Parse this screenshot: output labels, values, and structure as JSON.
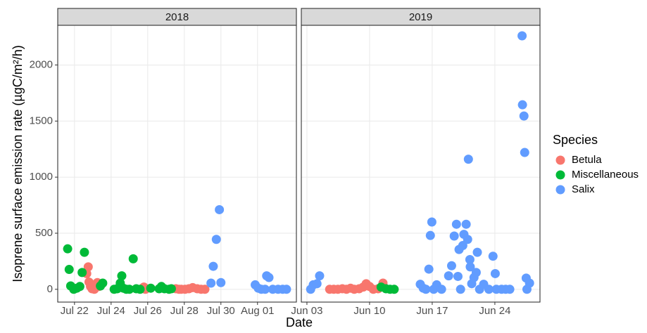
{
  "chart_data": {
    "type": "scatter",
    "ylabel": "Isoprene surface emission rate (µgC/m²/h)",
    "xlabel": "Date",
    "legend_title": "Species",
    "ylim": [
      -114,
      2354
    ],
    "yticks": [
      0,
      500,
      1000,
      1500,
      2000
    ],
    "grid": true,
    "panels": [
      {
        "title": "2018",
        "xlim": [
          "2018-07-21T02:00",
          "2018-08-03T03:00"
        ],
        "xticks": [
          {
            "value": "2018-07-22T00:00",
            "label": "Jul 22"
          },
          {
            "value": "2018-07-24T00:00",
            "label": "Jul 24"
          },
          {
            "value": "2018-07-26T00:00",
            "label": "Jul 26"
          },
          {
            "value": "2018-07-28T00:00",
            "label": "Jul 28"
          },
          {
            "value": "2018-07-30T00:00",
            "label": "Jul 30"
          },
          {
            "value": "2018-08-01T00:00",
            "label": "Aug 01"
          }
        ],
        "series": [
          {
            "name": "Betula",
            "color": "#F8766D",
            "x": [
              "2018-07-22T16:00",
              "2018-07-22T18:00",
              "2018-07-22T19:00",
              "2018-07-22T21:00",
              "2018-07-22T23:00",
              "2018-07-23T02:00",
              "2018-07-23T06:00",
              "2018-07-23T08:00",
              "2018-07-25T19:00",
              "2018-07-25T21:00",
              "2018-07-27T13:00",
              "2018-07-27T17:00",
              "2018-07-27T20:00",
              "2018-07-28T01:00",
              "2018-07-28T06:00",
              "2018-07-28T11:00",
              "2018-07-28T17:00",
              "2018-07-28T22:00",
              "2018-07-29T03:00"
            ],
            "values": [
              140,
              200,
              65,
              25,
              5,
              0,
              60,
              25,
              20,
              0,
              5,
              0,
              0,
              0,
              5,
              15,
              5,
              0,
              0
            ]
          },
          {
            "name": "Miscellaneous",
            "color": "#00BA38",
            "x": [
              "2018-07-21T15:00",
              "2018-07-21T17:00",
              "2018-07-21T19:00",
              "2018-07-21T23:00",
              "2018-07-22T03:00",
              "2018-07-22T07:00",
              "2018-07-22T10:00",
              "2018-07-22T13:00",
              "2018-07-23T10:00",
              "2018-07-23T13:00",
              "2018-07-24T04:00",
              "2018-07-24T08:00",
              "2018-07-24T12:00",
              "2018-07-24T14:00",
              "2018-07-24T16:00",
              "2018-07-24T20:00",
              "2018-07-25T00:00",
              "2018-07-25T05:00",
              "2018-07-25T09:00",
              "2018-07-25T14:00",
              "2018-07-26T04:00",
              "2018-07-26T15:00",
              "2018-07-26T18:00",
              "2018-07-26T22:00",
              "2018-07-27T04:00",
              "2018-07-27T07:00"
            ],
            "values": [
              361,
              177,
              30,
              0,
              10,
              25,
              150,
              330,
              30,
              55,
              0,
              5,
              55,
              120,
              10,
              0,
              0,
              272,
              5,
              0,
              10,
              5,
              25,
              5,
              0,
              5
            ]
          },
          {
            "name": "Salix",
            "color": "#619CFF",
            "x": [
              "2018-07-29T11:00",
              "2018-07-29T14:00",
              "2018-07-29T18:00",
              "2018-07-29T22:00",
              "2018-07-30T00:00",
              "2018-07-31T21:00",
              "2018-08-01T01:00",
              "2018-08-01T05:00",
              "2018-08-01T10:00",
              "2018-08-01T12:00",
              "2018-08-01T15:00",
              "2018-08-01T20:00",
              "2018-08-02T03:00",
              "2018-08-02T09:00",
              "2018-08-02T14:00"
            ],
            "values": [
              55,
              205,
              445,
              710,
              60,
              40,
              10,
              0,
              0,
              120,
              105,
              0,
              0,
              0,
              0
            ]
          }
        ]
      },
      {
        "title": "2019",
        "xlim": [
          "2019-06-02T09:00",
          "2019-06-29T01:00"
        ],
        "xticks": [
          {
            "value": "2019-06-03T00:00",
            "label": "Jun 03"
          },
          {
            "value": "2019-06-10T00:00",
            "label": "Jun 10"
          },
          {
            "value": "2019-06-17T00:00",
            "label": "Jun 17"
          },
          {
            "value": "2019-06-24T00:00",
            "label": "Jun 24"
          }
        ],
        "series": [
          {
            "name": "Betula",
            "color": "#F8766D",
            "x": [
              "2019-06-05T13:00",
              "2019-06-06T00:00",
              "2019-06-06T11:00",
              "2019-06-06T23:00",
              "2019-06-07T10:00",
              "2019-06-07T21:00",
              "2019-06-08T07:00",
              "2019-06-08T20:00",
              "2019-06-09T07:00",
              "2019-06-09T15:00",
              "2019-06-10T00:00",
              "2019-06-10T10:00",
              "2019-06-10T23:00",
              "2019-06-11T12:00"
            ],
            "values": [
              0,
              0,
              0,
              5,
              0,
              10,
              0,
              5,
              20,
              50,
              25,
              0,
              5,
              55
            ]
          },
          {
            "name": "Miscellaneous",
            "color": "#00BA38",
            "x": [
              "2019-06-11T07:00",
              "2019-06-11T20:00",
              "2019-06-12T07:00",
              "2019-06-12T18:00"
            ],
            "values": [
              20,
              5,
              0,
              0
            ]
          },
          {
            "name": "Salix",
            "color": "#619CFF",
            "x": [
              "2019-06-03T10:00",
              "2019-06-03T17:00",
              "2019-06-04T03:00",
              "2019-06-04T10:00",
              "2019-06-15T16:00",
              "2019-06-16T00:00",
              "2019-06-16T07:00",
              "2019-06-16T15:00",
              "2019-06-16T19:00",
              "2019-06-16T23:00",
              "2019-06-17T04:00",
              "2019-06-17T12:00",
              "2019-06-18T01:00",
              "2019-06-18T20:00",
              "2019-06-19T04:00",
              "2019-06-19T11:00",
              "2019-06-19T17:00",
              "2019-06-19T21:00",
              "2019-06-20T00:00",
              "2019-06-20T04:00",
              "2019-06-20T10:00",
              "2019-06-20T13:00",
              "2019-06-20T19:00",
              "2019-06-20T23:00",
              "2019-06-21T01:00",
              "2019-06-21T05:00",
              "2019-06-21T06:00",
              "2019-06-21T10:00",
              "2019-06-21T16:00",
              "2019-06-21T22:00",
              "2019-06-22T01:00",
              "2019-06-22T07:00",
              "2019-06-22T18:00",
              "2019-06-23T08:00",
              "2019-06-23T19:00",
              "2019-06-24T01:00",
              "2019-06-24T04:00",
              "2019-06-24T18:00",
              "2019-06-25T05:00",
              "2019-06-25T16:00",
              "2019-06-27T01:00",
              "2019-06-27T02:00",
              "2019-06-27T06:00",
              "2019-06-27T08:00",
              "2019-06-27T12:00",
              "2019-06-27T14:00",
              "2019-06-27T21:00"
            ],
            "values": [
              0,
              40,
              50,
              120,
              45,
              10,
              0,
              180,
              480,
              600,
              0,
              40,
              0,
              120,
              210,
              475,
              580,
              115,
              355,
              0,
              390,
              490,
              580,
              445,
              1160,
              265,
              200,
              50,
              105,
              150,
              330,
              0,
              45,
              0,
              295,
              140,
              0,
              0,
              0,
              0,
              2260,
              1645,
              1545,
              1220,
              100,
              0,
              55
            ]
          }
        ]
      }
    ]
  }
}
